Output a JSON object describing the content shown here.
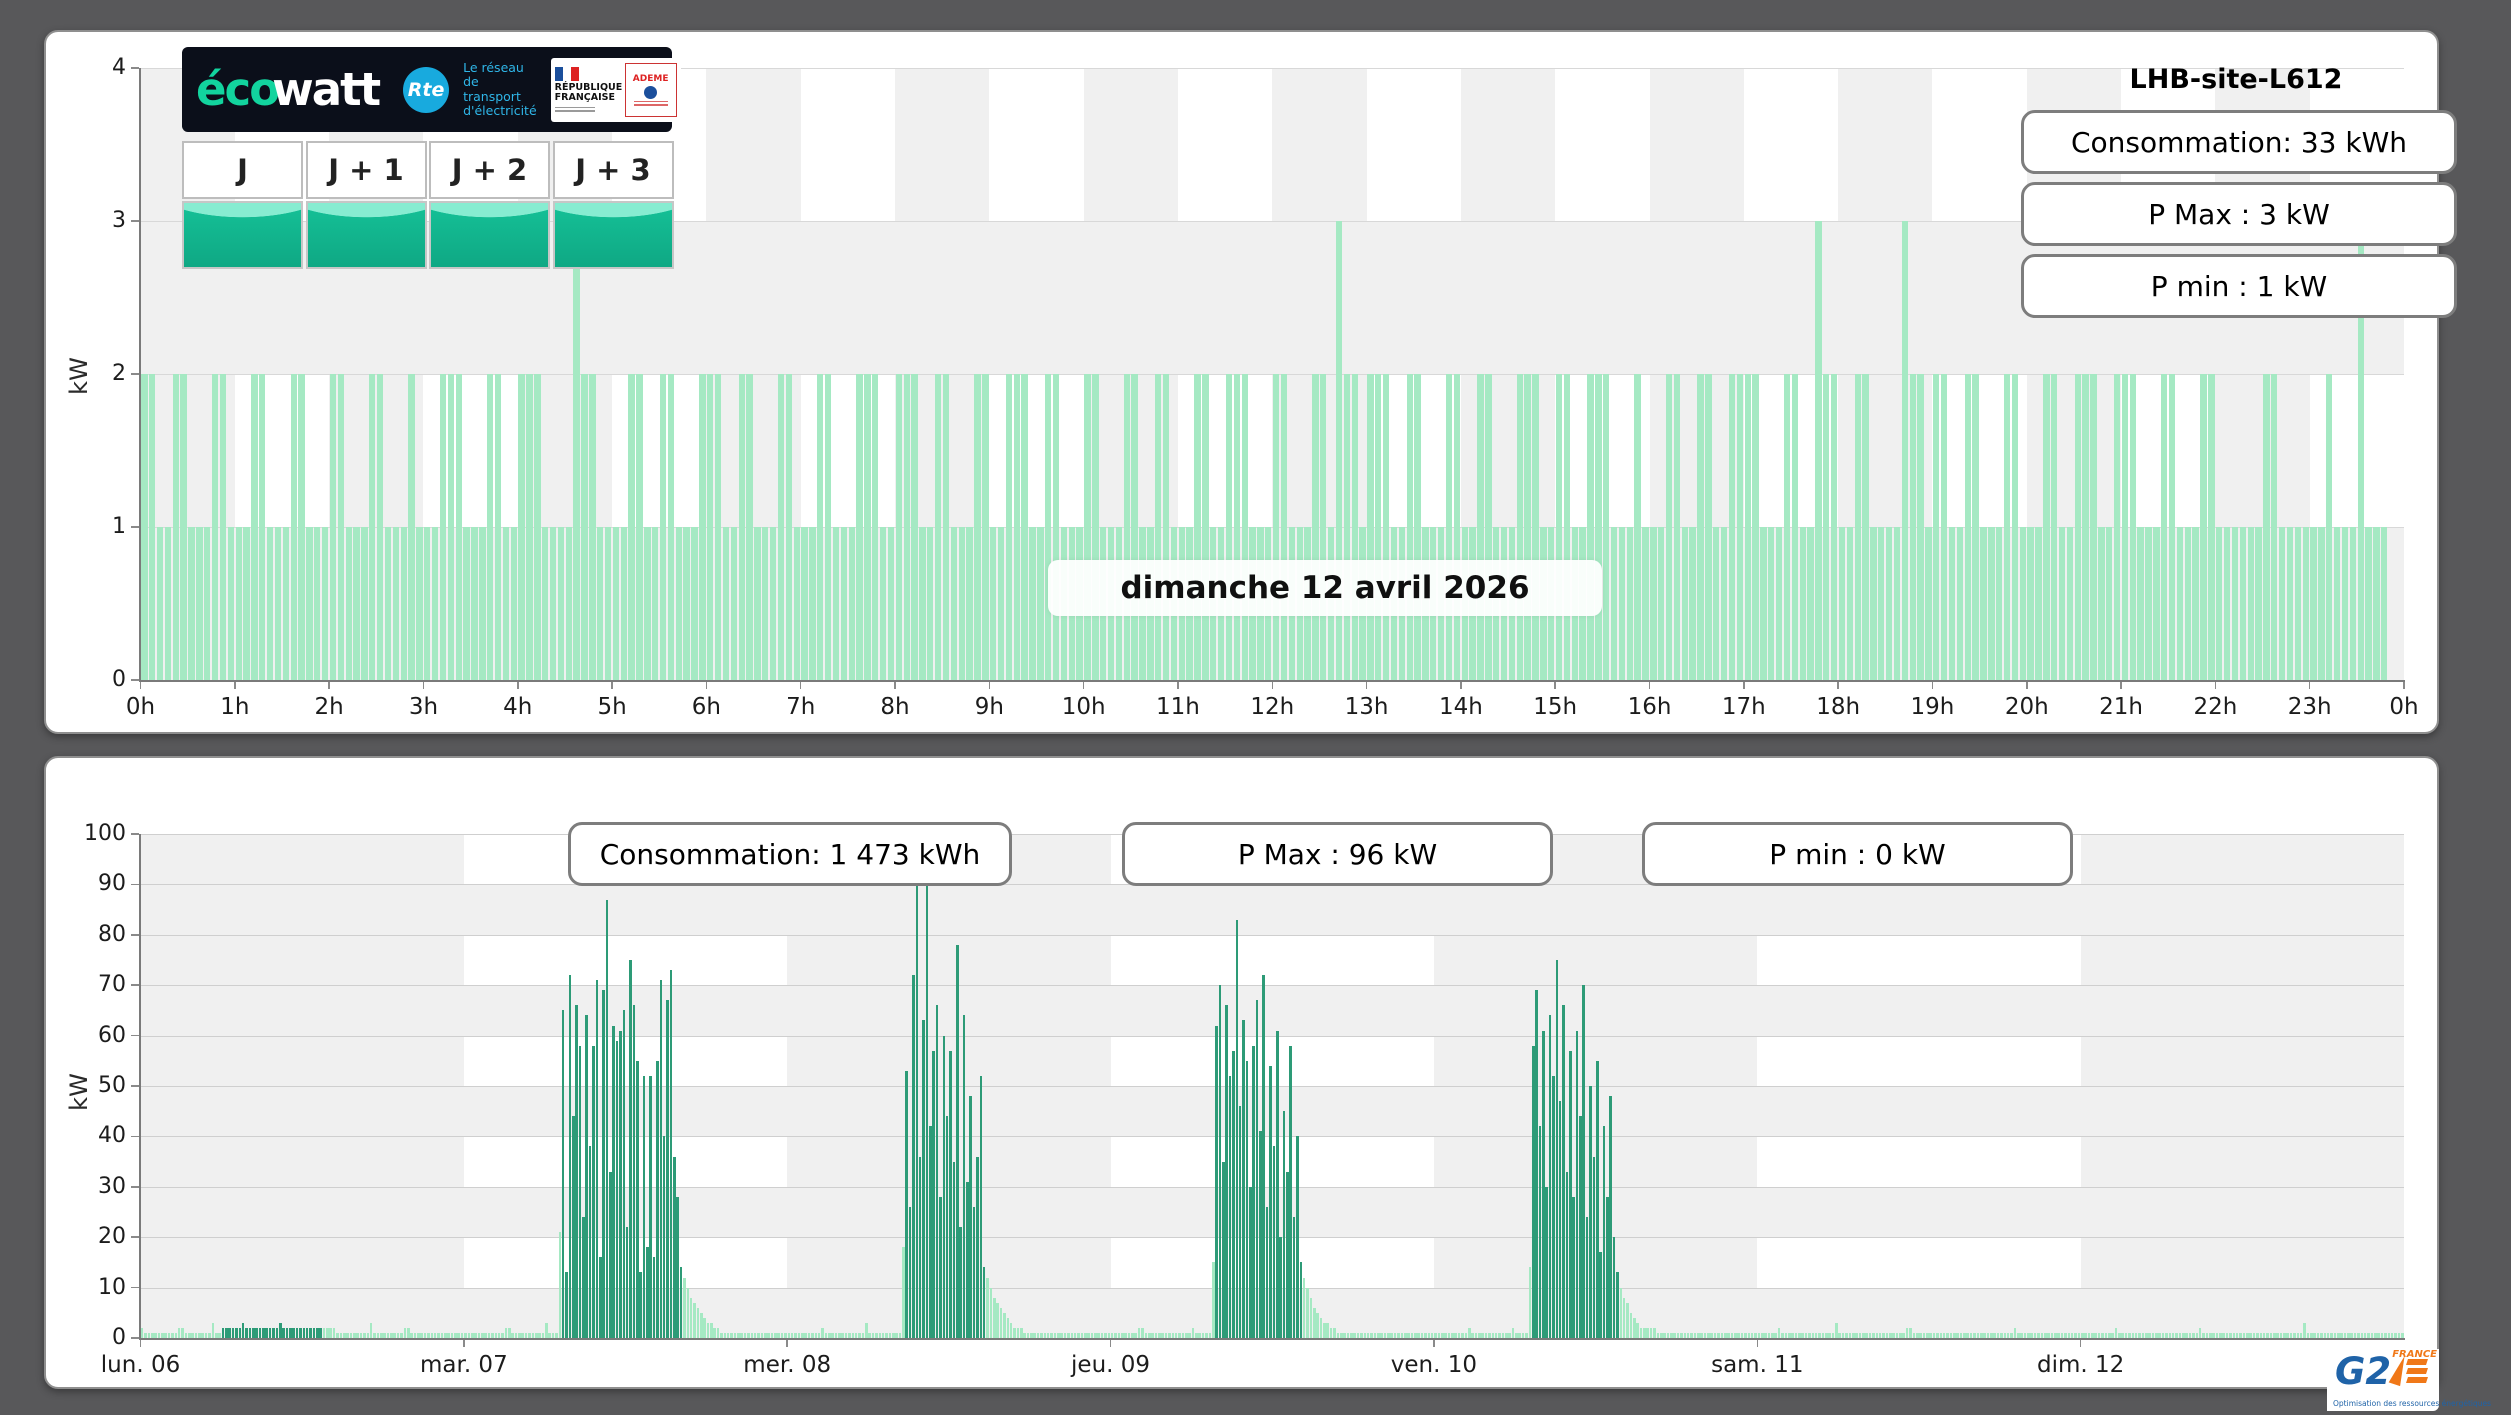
{
  "colors": {
    "page_bg": "#58585a",
    "panel_bg": "#ffffff",
    "band_gray": "#f0f0f0",
    "grid": "#d8d8d8",
    "axis": "#7a7a7a",
    "mint": "#a5e9c3",
    "dark_green": "#2d9b77",
    "stat_border": "#7d7d7d",
    "rte_blue": "#18aade",
    "eco_teal": "#12d49e",
    "g2e_blue": "#1f63a8",
    "g2e_orange": "#f07818"
  },
  "top_panel": {
    "site_label": "LHB-site-L612",
    "stats": [
      "Consommation: 33 kWh",
      "P Max :  3 kW",
      "P min : 1 kW"
    ],
    "date_label": "dimanche 12 avril 2026",
    "tabs": [
      "J",
      "J + 1",
      "J + 2",
      "J + 3"
    ],
    "logo": {
      "brand_left": "éco",
      "brand_right": "watt",
      "rte": "Rte",
      "rte_caption": [
        "Le réseau",
        "de transport",
        "d'électricité"
      ],
      "gov_name": "RÉPUBLIQUE FRANÇAISE",
      "ademe": "ADEME"
    }
  },
  "bottom_panel": {
    "stats": [
      "Consommation: 1 473 kWh",
      "P Max :  96 kW",
      "P min : 0 kW"
    ],
    "g2e": {
      "name": "G2",
      "e": "E",
      "country": "FRANCE",
      "tagline": "Optimisation des ressources énergétiques"
    }
  },
  "chart_data": [
    {
      "type": "bar",
      "title": "dimanche 12 avril 2026",
      "ylabel": "kW",
      "ylim": [
        0,
        4
      ],
      "yticks": [
        0,
        1,
        2,
        3,
        4
      ],
      "xtick_labels": [
        "0h",
        "1h",
        "2h",
        "3h",
        "4h",
        "5h",
        "6h",
        "7h",
        "8h",
        "9h",
        "10h",
        "11h",
        "12h",
        "13h",
        "14h",
        "15h",
        "16h",
        "17h",
        "18h",
        "19h",
        "20h",
        "21h",
        "22h",
        "23h",
        "0h"
      ],
      "resolution_min": 5,
      "legend": "none",
      "grid": "checkerboard-hourly",
      "summary": {
        "consumption_kwh": 33,
        "p_max_kw": 3,
        "p_min_kw": 1
      },
      "values_compact": "221122111221112211122111221112211121112221112211222111132211112211221112221122111221112211122211222112211122112221122111221112211221112211222111221112213221222112211122112211122211221122211121112211221122221112211322112211113221221122111221112211222112221112211122111111221111112111311100"
    },
    {
      "type": "bar",
      "title": "",
      "ylabel": "kW",
      "ylim": [
        0,
        100
      ],
      "yticks": [
        0,
        10,
        20,
        30,
        40,
        50,
        60,
        70,
        80,
        90,
        100
      ],
      "xtick_labels": [
        "lun. 06",
        "mar. 07",
        "mer. 08",
        "jeu. 09",
        "ven. 10",
        "sam. 11",
        "dim. 12"
      ],
      "resolution_min": 15,
      "legend": "none",
      "grid": "checkerboard-daily",
      "summary": {
        "consumption_kwh": 1473,
        "p_max_kw": 96,
        "p_min_kw": 0
      },
      "shade_meaning": {
        "L": "base-load (light green)",
        "D": "heavy-load (dark green)"
      },
      "runs": [
        [
          1,
          2,
          "L"
        ],
        [
          10,
          1,
          "L"
        ],
        [
          2,
          2,
          "L"
        ],
        [
          8,
          1,
          "L"
        ],
        [
          1,
          3,
          "L"
        ],
        [
          2,
          1,
          "L"
        ],
        [
          6,
          2,
          "D"
        ],
        [
          1,
          3,
          "D"
        ],
        [
          10,
          2,
          "D"
        ],
        [
          1,
          3,
          "D"
        ],
        [
          12,
          2,
          "D"
        ],
        [
          4,
          2,
          "L"
        ],
        [
          10,
          1,
          "L"
        ],
        [
          1,
          3,
          "L"
        ],
        [
          9,
          1,
          "L"
        ],
        [
          2,
          2,
          "L"
        ],
        [
          16,
          1,
          "L"
        ],
        [
          12,
          1,
          "L"
        ],
        [
          2,
          2,
          "L"
        ],
        [
          10,
          1,
          "L"
        ],
        [
          1,
          3,
          "L"
        ],
        [
          3,
          1,
          "L"
        ],
        [
          1,
          21,
          "L"
        ],
        [
          1,
          65,
          "D"
        ],
        [
          1,
          13,
          "D"
        ],
        [
          1,
          72,
          "D"
        ],
        [
          1,
          44,
          "D"
        ],
        [
          1,
          66,
          "D"
        ],
        [
          1,
          58,
          "D"
        ],
        [
          1,
          24,
          "D"
        ],
        [
          1,
          64,
          "D"
        ],
        [
          1,
          38,
          "D"
        ],
        [
          1,
          58,
          "D"
        ],
        [
          1,
          71,
          "D"
        ],
        [
          1,
          16,
          "D"
        ],
        [
          1,
          69,
          "D"
        ],
        [
          1,
          87,
          "D"
        ],
        [
          1,
          33,
          "D"
        ],
        [
          1,
          62,
          "D"
        ],
        [
          1,
          59,
          "D"
        ],
        [
          1,
          61,
          "D"
        ],
        [
          1,
          65,
          "D"
        ],
        [
          1,
          22,
          "D"
        ],
        [
          1,
          75,
          "D"
        ],
        [
          1,
          66,
          "D"
        ],
        [
          1,
          55,
          "D"
        ],
        [
          1,
          13,
          "D"
        ],
        [
          1,
          52,
          "D"
        ],
        [
          1,
          18,
          "D"
        ],
        [
          1,
          52,
          "D"
        ],
        [
          1,
          16,
          "D"
        ],
        [
          1,
          55,
          "D"
        ],
        [
          1,
          71,
          "D"
        ],
        [
          1,
          40,
          "D"
        ],
        [
          1,
          67,
          "D"
        ],
        [
          1,
          73,
          "D"
        ],
        [
          1,
          36,
          "D"
        ],
        [
          1,
          28,
          "D"
        ],
        [
          1,
          14,
          "D"
        ],
        [
          1,
          12,
          "L"
        ],
        [
          1,
          10,
          "L"
        ],
        [
          1,
          8,
          "L"
        ],
        [
          1,
          7,
          "L"
        ],
        [
          1,
          6,
          "L"
        ],
        [
          1,
          5,
          "L"
        ],
        [
          1,
          4,
          "L"
        ],
        [
          2,
          3,
          "L"
        ],
        [
          2,
          2,
          "L"
        ],
        [
          20,
          1,
          "L"
        ],
        [
          10,
          1,
          "L"
        ],
        [
          1,
          2,
          "L"
        ],
        [
          12,
          1,
          "L"
        ],
        [
          1,
          3,
          "L"
        ],
        [
          10,
          1,
          "L"
        ],
        [
          1,
          18,
          "L"
        ],
        [
          1,
          53,
          "D"
        ],
        [
          1,
          26,
          "D"
        ],
        [
          1,
          72,
          "D"
        ],
        [
          1,
          90,
          "D"
        ],
        [
          1,
          36,
          "D"
        ],
        [
          1,
          63,
          "D"
        ],
        [
          1,
          96,
          "D"
        ],
        [
          1,
          42,
          "D"
        ],
        [
          1,
          57,
          "D"
        ],
        [
          1,
          66,
          "D"
        ],
        [
          1,
          28,
          "D"
        ],
        [
          1,
          60,
          "D"
        ],
        [
          1,
          44,
          "D"
        ],
        [
          1,
          57,
          "D"
        ],
        [
          1,
          35,
          "D"
        ],
        [
          1,
          78,
          "D"
        ],
        [
          1,
          22,
          "D"
        ],
        [
          1,
          64,
          "D"
        ],
        [
          1,
          31,
          "D"
        ],
        [
          1,
          48,
          "D"
        ],
        [
          1,
          26,
          "D"
        ],
        [
          1,
          36,
          "D"
        ],
        [
          1,
          52,
          "D"
        ],
        [
          1,
          14,
          "D"
        ],
        [
          1,
          12,
          "L"
        ],
        [
          1,
          10,
          "L"
        ],
        [
          1,
          8,
          "L"
        ],
        [
          1,
          7,
          "L"
        ],
        [
          1,
          6,
          "L"
        ],
        [
          1,
          5,
          "L"
        ],
        [
          1,
          4,
          "L"
        ],
        [
          1,
          3,
          "L"
        ],
        [
          1,
          2,
          "L"
        ],
        [
          2,
          2,
          "L"
        ],
        [
          26,
          1,
          "L"
        ],
        [
          8,
          1,
          "L"
        ],
        [
          2,
          2,
          "L"
        ],
        [
          14,
          1,
          "L"
        ],
        [
          1,
          2,
          "L"
        ],
        [
          5,
          1,
          "L"
        ],
        [
          1,
          15,
          "L"
        ],
        [
          1,
          62,
          "D"
        ],
        [
          1,
          70,
          "D"
        ],
        [
          1,
          35,
          "D"
        ],
        [
          1,
          66,
          "D"
        ],
        [
          1,
          52,
          "D"
        ],
        [
          1,
          57,
          "D"
        ],
        [
          1,
          83,
          "D"
        ],
        [
          1,
          46,
          "D"
        ],
        [
          1,
          63,
          "D"
        ],
        [
          1,
          55,
          "D"
        ],
        [
          1,
          30,
          "D"
        ],
        [
          1,
          58,
          "D"
        ],
        [
          1,
          67,
          "D"
        ],
        [
          1,
          41,
          "D"
        ],
        [
          1,
          72,
          "D"
        ],
        [
          1,
          26,
          "D"
        ],
        [
          1,
          54,
          "D"
        ],
        [
          1,
          38,
          "D"
        ],
        [
          1,
          61,
          "D"
        ],
        [
          1,
          20,
          "D"
        ],
        [
          1,
          45,
          "D"
        ],
        [
          1,
          33,
          "D"
        ],
        [
          1,
          58,
          "D"
        ],
        [
          1,
          24,
          "D"
        ],
        [
          1,
          40,
          "D"
        ],
        [
          1,
          15,
          "D"
        ],
        [
          1,
          12,
          "L"
        ],
        [
          1,
          10,
          "L"
        ],
        [
          1,
          8,
          "L"
        ],
        [
          1,
          6,
          "L"
        ],
        [
          1,
          5,
          "L"
        ],
        [
          1,
          4,
          "L"
        ],
        [
          2,
          3,
          "L"
        ],
        [
          2,
          2,
          "L"
        ],
        [
          29,
          1,
          "L"
        ],
        [
          10,
          1,
          "L"
        ],
        [
          1,
          2,
          "L"
        ],
        [
          12,
          1,
          "L"
        ],
        [
          1,
          2,
          "L"
        ],
        [
          4,
          1,
          "L"
        ],
        [
          1,
          14,
          "L"
        ],
        [
          1,
          58,
          "D"
        ],
        [
          1,
          69,
          "D"
        ],
        [
          1,
          42,
          "D"
        ],
        [
          1,
          61,
          "D"
        ],
        [
          1,
          30,
          "D"
        ],
        [
          1,
          64,
          "D"
        ],
        [
          1,
          52,
          "D"
        ],
        [
          1,
          75,
          "D"
        ],
        [
          1,
          47,
          "D"
        ],
        [
          1,
          66,
          "D"
        ],
        [
          1,
          33,
          "D"
        ],
        [
          1,
          57,
          "D"
        ],
        [
          1,
          28,
          "D"
        ],
        [
          1,
          61,
          "D"
        ],
        [
          1,
          44,
          "D"
        ],
        [
          1,
          70,
          "D"
        ],
        [
          1,
          24,
          "D"
        ],
        [
          1,
          50,
          "D"
        ],
        [
          1,
          36,
          "D"
        ],
        [
          1,
          55,
          "D"
        ],
        [
          1,
          17,
          "D"
        ],
        [
          1,
          42,
          "D"
        ],
        [
          1,
          28,
          "D"
        ],
        [
          1,
          48,
          "D"
        ],
        [
          1,
          20,
          "D"
        ],
        [
          1,
          13,
          "D"
        ],
        [
          1,
          10,
          "L"
        ],
        [
          1,
          8,
          "L"
        ],
        [
          1,
          7,
          "L"
        ],
        [
          1,
          5,
          "L"
        ],
        [
          1,
          4,
          "L"
        ],
        [
          1,
          3,
          "L"
        ],
        [
          3,
          2,
          "L"
        ],
        [
          2,
          2,
          "L"
        ],
        [
          30,
          1,
          "L"
        ],
        [
          6,
          1,
          "L"
        ],
        [
          1,
          2,
          "L"
        ],
        [
          16,
          1,
          "L"
        ],
        [
          1,
          3,
          "L"
        ],
        [
          20,
          1,
          "L"
        ],
        [
          2,
          2,
          "L"
        ],
        [
          30,
          1,
          "L"
        ],
        [
          1,
          2,
          "L"
        ],
        [
          19,
          1,
          "L"
        ],
        [
          10,
          1,
          "L"
        ],
        [
          1,
          2,
          "L"
        ],
        [
          24,
          1,
          "L"
        ],
        [
          1,
          2,
          "L"
        ],
        [
          30,
          1,
          "L"
        ],
        [
          1,
          3,
          "L"
        ],
        [
          29,
          1,
          "L"
        ]
      ]
    }
  ]
}
